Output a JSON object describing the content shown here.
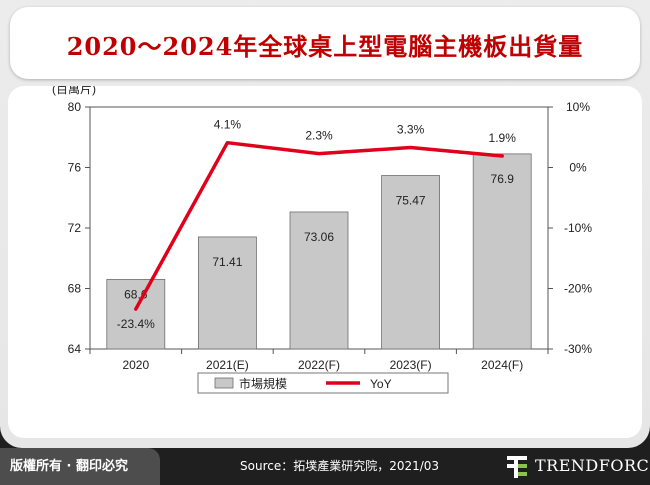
{
  "header": {
    "title": "2020～2024年全球桌上型電腦主機板出貨量"
  },
  "chart_data": {
    "type": "bar",
    "categories": [
      "2020",
      "2021(E)",
      "2022(F)",
      "2023(F)",
      "2024(F)"
    ],
    "series": [
      {
        "name": "市場規模",
        "type": "bar",
        "axis": "left",
        "values": [
          68.6,
          71.41,
          73.06,
          75.47,
          76.9
        ],
        "labels": [
          "68.6",
          "71.41",
          "73.06",
          "75.47",
          "76.9"
        ]
      },
      {
        "name": "YoY",
        "type": "line",
        "axis": "right",
        "values": [
          -23.4,
          4.1,
          2.3,
          3.3,
          1.9
        ],
        "labels": [
          "-23.4%",
          "4.1%",
          "2.3%",
          "3.3%",
          "1.9%"
        ]
      }
    ],
    "ylabel": "(百萬片)",
    "ylim": [
      64,
      80
    ],
    "yticks": [
      "80",
      "76",
      "72",
      "68",
      "64"
    ],
    "ytick_values": [
      80,
      76,
      72,
      68,
      64
    ],
    "y2lim": [
      -30,
      10
    ],
    "y2ticks": [
      "10%",
      "0%",
      "-10%",
      "-20%",
      "-30%"
    ],
    "y2tick_values": [
      10,
      0,
      -10,
      -20,
      -30
    ],
    "grid": false,
    "legend_position": "bottom",
    "colors": {
      "bar": "#c8c8c8",
      "bar_stroke": "#6e6e6e",
      "line": "#e0001b"
    }
  },
  "footer": {
    "rights": "版權所有 · 翻印必究",
    "source": "Source：拓墣產業研究院，2021/03",
    "logo": "TRENDFORCE"
  }
}
